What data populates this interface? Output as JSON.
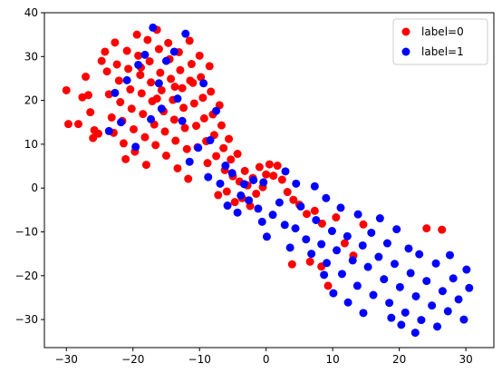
{
  "chart_data": {
    "type": "scatter",
    "title": "",
    "xlabel": "",
    "ylabel": "",
    "xlim": [
      -33.3,
      34.2
    ],
    "ylim": [
      -36.4,
      40.0
    ],
    "xticks": [
      -30,
      -20,
      -10,
      0,
      10,
      20,
      30
    ],
    "xtick_labels": [
      "−30",
      "−20",
      "−10",
      "0",
      "10",
      "20",
      "30"
    ],
    "yticks": [
      -30,
      -20,
      -10,
      0,
      10,
      20,
      30,
      40
    ],
    "ytick_labels": [
      "−30",
      "−20",
      "−10",
      "0",
      "10",
      "20",
      "30",
      "40"
    ],
    "grid": false,
    "legend_position": "top-right",
    "series": [
      {
        "name": "label=0",
        "color": "#ff0000",
        "points": [
          [
            -30.0,
            22.3
          ],
          [
            -29.7,
            14.6
          ],
          [
            -28.2,
            14.6
          ],
          [
            -27.6,
            20.7
          ],
          [
            -27.1,
            25.4
          ],
          [
            -26.7,
            21.2
          ],
          [
            -26.4,
            17.3
          ],
          [
            -26.0,
            11.4
          ],
          [
            -25.8,
            13.2
          ],
          [
            -25.2,
            12.4
          ],
          [
            -24.7,
            29.0
          ],
          [
            -24.2,
            31.1
          ],
          [
            -23.9,
            26.6
          ],
          [
            -23.6,
            21.4
          ],
          [
            -23.2,
            16.1
          ],
          [
            -22.9,
            12.6
          ],
          [
            -22.7,
            33.2
          ],
          [
            -22.4,
            28.2
          ],
          [
            -22.1,
            24.5
          ],
          [
            -21.9,
            19.6
          ],
          [
            -21.6,
            15.3
          ],
          [
            -21.4,
            10.2
          ],
          [
            -21.1,
            6.6
          ],
          [
            -20.9,
            31.3
          ],
          [
            -20.7,
            27.2
          ],
          [
            -20.4,
            22.5
          ],
          [
            -20.2,
            18.1
          ],
          [
            -19.9,
            13.4
          ],
          [
            -19.7,
            8.3
          ],
          [
            -19.4,
            35.0
          ],
          [
            -19.2,
            30.2
          ],
          [
            -18.9,
            25.8
          ],
          [
            -18.7,
            21.6
          ],
          [
            -18.5,
            16.9
          ],
          [
            -18.2,
            11.6
          ],
          [
            -18.0,
            5.3
          ],
          [
            -17.8,
            33.8
          ],
          [
            -17.5,
            28.9
          ],
          [
            -17.3,
            24.1
          ],
          [
            -17.1,
            19.8
          ],
          [
            -16.8,
            14.5
          ],
          [
            -16.6,
            9.8
          ],
          [
            -16.4,
            36.1
          ],
          [
            -16.1,
            31.7
          ],
          [
            -15.9,
            26.3
          ],
          [
            -15.7,
            22.3
          ],
          [
            -15.4,
            17.5
          ],
          [
            -15.2,
            12.9
          ],
          [
            -15.0,
            7.4
          ],
          [
            -14.7,
            33.1
          ],
          [
            -14.5,
            29.4
          ],
          [
            -14.3,
            24.9
          ],
          [
            -14.0,
            20.1
          ],
          [
            -13.8,
            15.6
          ],
          [
            -13.6,
            10.8
          ],
          [
            -13.3,
            4.5
          ],
          [
            -13.1,
            31.0
          ],
          [
            -12.9,
            26.9
          ],
          [
            -12.6,
            22.8
          ],
          [
            -12.4,
            18.3
          ],
          [
            -12.2,
            13.7
          ],
          [
            -11.9,
            8.9
          ],
          [
            -11.7,
            2.1
          ],
          [
            -11.5,
            33.6
          ],
          [
            -11.2,
            28.3
          ],
          [
            -11.0,
            24.0
          ],
          [
            -10.8,
            19.3
          ],
          [
            -10.5,
            14.2
          ],
          [
            -10.3,
            9.3
          ],
          [
            -10.0,
            30.2
          ],
          [
            -9.8,
            25.3
          ],
          [
            -9.5,
            20.6
          ],
          [
            -9.3,
            15.9
          ],
          [
            -9.0,
            10.7
          ],
          [
            -8.8,
            5.7
          ],
          [
            -8.5,
            27.8
          ],
          [
            -8.3,
            22.0
          ],
          [
            -8.0,
            16.8
          ],
          [
            -7.8,
            12.1
          ],
          [
            -7.5,
            7.3
          ],
          [
            -7.2,
            -1.6
          ],
          [
            -7.0,
            18.9
          ],
          [
            -6.7,
            14.3
          ],
          [
            -6.4,
            9.1
          ],
          [
            -6.2,
            4.1
          ],
          [
            -5.9,
            -0.8
          ],
          [
            -5.6,
            11.2
          ],
          [
            -5.3,
            6.5
          ],
          [
            -5.0,
            2.7
          ],
          [
            -4.7,
            -3.2
          ],
          [
            -4.3,
            7.8
          ],
          [
            -4.0,
            1.5
          ],
          [
            -3.6,
            -2.3
          ],
          [
            -3.2,
            3.9
          ],
          [
            -2.8,
            0.6
          ],
          [
            -2.4,
            -4.1
          ],
          [
            -2.0,
            2.3
          ],
          [
            -1.5,
            -1.3
          ],
          [
            -1.0,
            4.8
          ],
          [
            -0.5,
            0.2
          ],
          [
            0.0,
            3.1
          ],
          [
            0.5,
            5.4
          ],
          [
            1.1,
            2.8
          ],
          [
            1.7,
            5.1
          ],
          [
            2.4,
            1.9
          ],
          [
            3.2,
            -0.9
          ],
          [
            4.1,
            -2.7
          ],
          [
            5.0,
            -3.8
          ],
          [
            6.1,
            -5.9
          ],
          [
            7.3,
            -5.2
          ],
          [
            8.4,
            -8.1
          ],
          [
            9.3,
            -22.3
          ],
          [
            10.5,
            -6.7
          ],
          [
            11.8,
            -12.6
          ],
          [
            13.1,
            -15.4
          ],
          [
            3.9,
            -17.4
          ],
          [
            6.6,
            -16.8
          ],
          [
            8.3,
            -17.9
          ],
          [
            14.6,
            -8.3
          ],
          [
            24.1,
            -9.2
          ],
          [
            26.4,
            -9.5
          ],
          [
            -11.4,
            24.5
          ],
          [
            -13.7,
            23.1
          ],
          [
            -16.4,
            20.4
          ],
          [
            -18.8,
            27.5
          ]
        ]
      },
      {
        "name": "label=1",
        "color": "#0000ff",
        "points": [
          [
            -23.6,
            13.0
          ],
          [
            -22.7,
            21.7
          ],
          [
            -21.8,
            15.0
          ],
          [
            -19.2,
            28.1
          ],
          [
            -18.2,
            30.4
          ],
          [
            -17.0,
            36.6
          ],
          [
            -16.1,
            23.9
          ],
          [
            -15.0,
            29.0
          ],
          [
            -13.8,
            31.1
          ],
          [
            -12.6,
            15.3
          ],
          [
            -11.5,
            6.0
          ],
          [
            -10.2,
            9.2
          ],
          [
            -9.4,
            23.9
          ],
          [
            -8.7,
            2.5
          ],
          [
            -7.5,
            17.6
          ],
          [
            -6.9,
            1.0
          ],
          [
            -5.8,
            -4.0
          ],
          [
            -5.1,
            3.4
          ],
          [
            -4.3,
            -5.6
          ],
          [
            -3.3,
            0.9
          ],
          [
            -2.6,
            -2.8
          ],
          [
            -1.9,
            1.8
          ],
          [
            -1.2,
            -4.7
          ],
          [
            -0.6,
            -7.7
          ],
          [
            0.1,
            -11.1
          ],
          [
            1.0,
            -6.1
          ],
          [
            2.0,
            -3.3
          ],
          [
            2.8,
            -8.4
          ],
          [
            3.6,
            -13.6
          ],
          [
            4.4,
            -9.2
          ],
          [
            5.2,
            -4.2
          ],
          [
            6.0,
            -11.7
          ],
          [
            6.8,
            -15.0
          ],
          [
            7.5,
            -7.3
          ],
          [
            8.3,
            -12.8
          ],
          [
            9.1,
            -17.1
          ],
          [
            9.9,
            -9.8
          ],
          [
            10.6,
            -14.2
          ],
          [
            11.4,
            -19.6
          ],
          [
            12.2,
            -11.0
          ],
          [
            13.0,
            -16.5
          ],
          [
            13.7,
            -22.3
          ],
          [
            14.5,
            -13.1
          ],
          [
            15.3,
            -18.0
          ],
          [
            16.1,
            -24.4
          ],
          [
            16.9,
            -15.7
          ],
          [
            17.7,
            -20.8
          ],
          [
            18.5,
            -26.2
          ],
          [
            19.3,
            -17.3
          ],
          [
            20.1,
            -22.6
          ],
          [
            20.9,
            -28.4
          ],
          [
            21.7,
            -19.4
          ],
          [
            22.5,
            -24.7
          ],
          [
            23.3,
            -30.1
          ],
          [
            24.1,
            -21.2
          ],
          [
            24.9,
            -26.8
          ],
          [
            25.7,
            -31.6
          ],
          [
            26.5,
            -23.5
          ],
          [
            27.3,
            -28.1
          ],
          [
            28.1,
            -20.6
          ],
          [
            28.9,
            -25.4
          ],
          [
            29.7,
            -30.0
          ],
          [
            30.5,
            -22.8
          ],
          [
            19.6,
            -9.4
          ],
          [
            18.2,
            -12.6
          ],
          [
            17.1,
            -6.9
          ],
          [
            15.8,
            -10.2
          ],
          [
            21.4,
            -13.8
          ],
          [
            23.0,
            -15.1
          ],
          [
            12.3,
            -26.1
          ],
          [
            14.6,
            -28.5
          ],
          [
            10.1,
            -24.0
          ],
          [
            8.7,
            -19.8
          ],
          [
            27.6,
            -15.3
          ],
          [
            30.1,
            -18.6
          ],
          [
            25.5,
            -17.2
          ],
          [
            22.4,
            -33.0
          ],
          [
            20.3,
            -31.2
          ],
          [
            18.8,
            -29.6
          ],
          [
            13.8,
            -6.0
          ],
          [
            11.2,
            -4.5
          ],
          [
            9.0,
            -2.3
          ],
          [
            7.3,
            0.4
          ],
          [
            4.5,
            1.0
          ],
          [
            2.9,
            3.8
          ],
          [
            -0.4,
            1.3
          ],
          [
            -3.8,
            -1.7
          ],
          [
            -6.1,
            5.1
          ],
          [
            -8.4,
            10.9
          ],
          [
            -13.3,
            20.4
          ],
          [
            -15.7,
            18.1
          ],
          [
            -19.6,
            9.4
          ],
          [
            -20.9,
            24.6
          ],
          [
            -17.3,
            15.7
          ],
          [
            -12.1,
            35.2
          ]
        ]
      }
    ]
  }
}
